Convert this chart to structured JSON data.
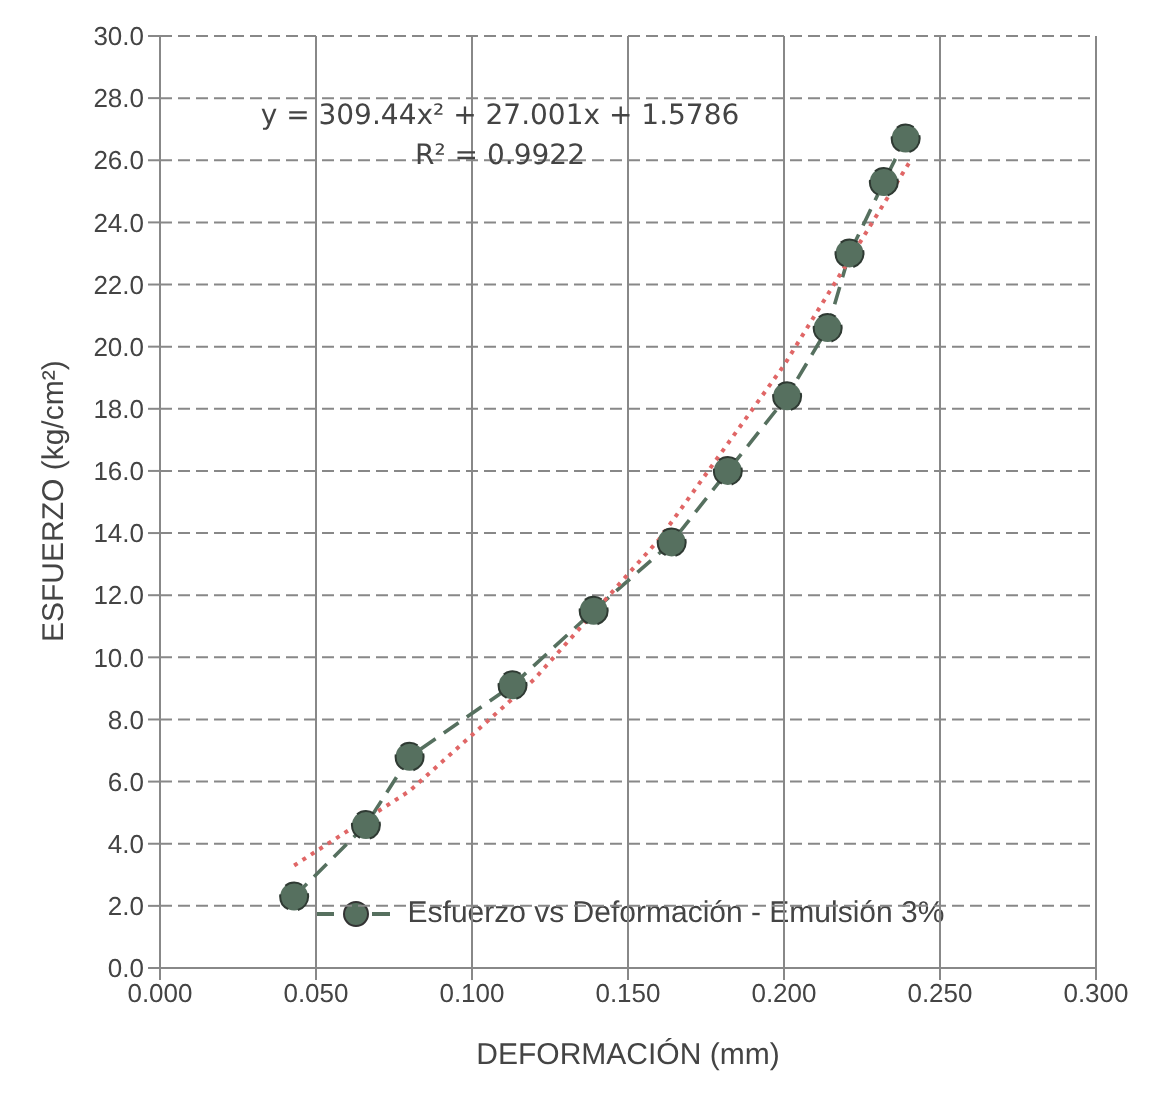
{
  "chart_data": {
    "type": "line",
    "xlabel": "DEFORMACIÓN (mm)",
    "ylabel": "ESFUERZO (kg/cm²)",
    "xlim": [
      0,
      0.3
    ],
    "xticks": [
      {
        "value": 0,
        "label": "0.000"
      },
      {
        "value": 0.05,
        "label": "0.050"
      },
      {
        "value": 0.1,
        "label": "0.100"
      },
      {
        "value": 0.15,
        "label": "0.150"
      },
      {
        "value": 0.2,
        "label": "0.200"
      },
      {
        "value": 0.25,
        "label": "0.250"
      },
      {
        "value": 0.3,
        "label": "0.300"
      }
    ],
    "ylim": [
      0,
      30
    ],
    "yticks": [
      {
        "value": 0,
        "label": "0.0"
      },
      {
        "value": 2,
        "label": "2.0"
      },
      {
        "value": 4,
        "label": "4.0"
      },
      {
        "value": 6,
        "label": "6.0"
      },
      {
        "value": 8,
        "label": "8.0"
      },
      {
        "value": 10,
        "label": "10.0"
      },
      {
        "value": 12,
        "label": "12.0"
      },
      {
        "value": 14,
        "label": "14.0"
      },
      {
        "value": 16,
        "label": "16.0"
      },
      {
        "value": 18,
        "label": "18.0"
      },
      {
        "value": 20,
        "label": "20.0"
      },
      {
        "value": 22,
        "label": "22.0"
      },
      {
        "value": 24,
        "label": "24.0"
      },
      {
        "value": 26,
        "label": "26.0"
      },
      {
        "value": 28,
        "label": "28.0"
      },
      {
        "value": 30,
        "label": "30.0"
      }
    ],
    "grid": true,
    "legend": "bottom",
    "annotations": [
      "y = 309.44x² + 27.001x + 1.5786",
      "R² = 0.9922"
    ],
    "series": [
      {
        "name": "Esfuerzo vs Deformación - Emulsión 3%",
        "color": "#56705f",
        "marker": "circle",
        "line_style": "dashed",
        "x": [
          0.043,
          0.066,
          0.08,
          0.113,
          0.139,
          0.164,
          0.182,
          0.201,
          0.214,
          0.221,
          0.232,
          0.239
        ],
        "values": [
          2.3,
          4.6,
          6.8,
          9.1,
          11.5,
          13.7,
          16.0,
          18.4,
          20.6,
          23.0,
          25.3,
          26.7
        ]
      },
      {
        "type": "line",
        "color": "#e06666",
        "marker": "none",
        "line_style": "dotted",
        "x": [
          0.043,
          0.08,
          0.12,
          0.16,
          0.2,
          0.24
        ],
        "values": [
          3.3,
          5.7,
          9.3,
          13.8,
          19.4,
          25.9
        ]
      }
    ]
  }
}
